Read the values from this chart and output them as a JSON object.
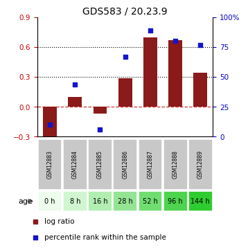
{
  "title": "GDS583 / 20.23.9",
  "samples": [
    "GSM12883",
    "GSM12884",
    "GSM12885",
    "GSM12886",
    "GSM12887",
    "GSM12888",
    "GSM12889"
  ],
  "ages": [
    "0 h",
    "8 h",
    "16 h",
    "28 h",
    "52 h",
    "96 h",
    "144 h"
  ],
  "log_ratio": [
    -0.37,
    0.1,
    -0.07,
    0.29,
    0.7,
    0.67,
    0.34
  ],
  "percentile_rank": [
    10,
    44,
    6,
    67,
    89,
    80,
    77
  ],
  "ylim_left": [
    -0.3,
    0.9
  ],
  "ylim_right": [
    0,
    100
  ],
  "yticks_left": [
    -0.3,
    0.0,
    0.3,
    0.6,
    0.9
  ],
  "yticks_right": [
    0,
    25,
    50,
    75,
    100
  ],
  "ytick_labels_right": [
    "0",
    "25",
    "50",
    "75",
    "100%"
  ],
  "dotted_lines": [
    0.3,
    0.6
  ],
  "bar_color": "#8B1A1A",
  "square_color": "#1414cc",
  "age_colors": [
    "#edfced",
    "#d0f5d0",
    "#b2edb2",
    "#94e494",
    "#70dd70",
    "#4ed44e",
    "#2ecc2e"
  ],
  "gsm_bg": "#c8c8c8",
  "left_tick_color": "#cc0000",
  "right_tick_color": "#0000cc",
  "legend_red": "log ratio",
  "legend_blue": "percentile rank within the sample"
}
